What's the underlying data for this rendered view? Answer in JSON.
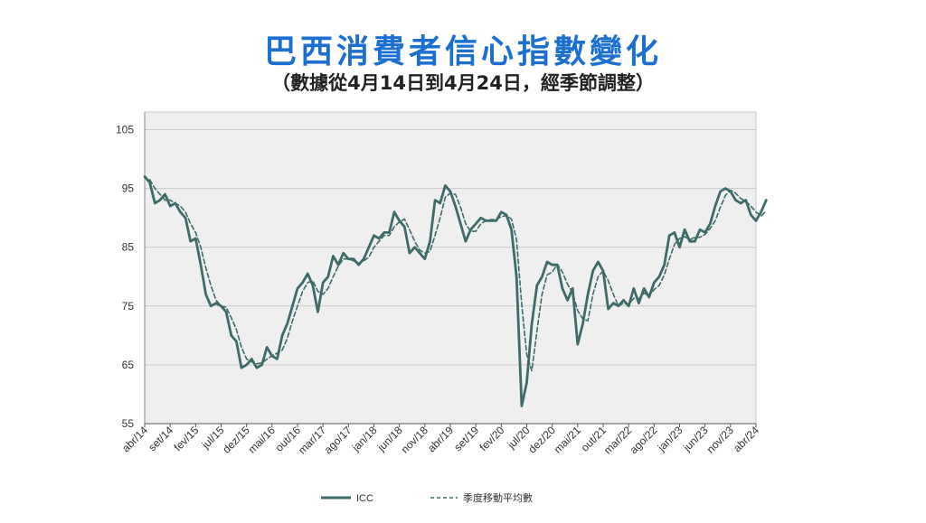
{
  "header": {
    "title": "巴西消費者信心指數變化",
    "subtitle": "（數據從4月14日到4月24日，經季節調整）"
  },
  "chart_data": {
    "type": "line",
    "title": "巴西消費者信心指數變化",
    "subtitle": "（數據從4月14日到4月24日，經季節調整）",
    "xlabel": "",
    "ylabel": "",
    "ylim": [
      55,
      108
    ],
    "yticks": [
      55,
      65,
      75,
      85,
      95,
      105
    ],
    "grid": true,
    "legend_position": "bottom",
    "x_start": "2014-04",
    "x_end": "2024-04",
    "x_tick_labels": [
      {
        "label": "abr/14",
        "month": 0
      },
      {
        "label": "set/14",
        "month": 5
      },
      {
        "label": "fev/15",
        "month": 10
      },
      {
        "label": "jul/15",
        "month": 15
      },
      {
        "label": "dez/15",
        "month": 20
      },
      {
        "label": "mai/16",
        "month": 25
      },
      {
        "label": "out/16",
        "month": 30
      },
      {
        "label": "mar/17",
        "month": 35
      },
      {
        "label": "ago/17",
        "month": 40
      },
      {
        "label": "jan/18",
        "month": 45
      },
      {
        "label": "jun/18",
        "month": 50
      },
      {
        "label": "nov/18",
        "month": 55
      },
      {
        "label": "abr/19",
        "month": 60
      },
      {
        "label": "set/19",
        "month": 65
      },
      {
        "label": "fev/20",
        "month": 70
      },
      {
        "label": "jul/20",
        "month": 75
      },
      {
        "label": "dez/20",
        "month": 80
      },
      {
        "label": "mai/21",
        "month": 85
      },
      {
        "label": "out/21",
        "month": 90
      },
      {
        "label": "mar/22",
        "month": 95
      },
      {
        "label": "ago/22",
        "month": 100
      },
      {
        "label": "jan/23",
        "month": 105
      },
      {
        "label": "jun/23",
        "month": 110
      },
      {
        "label": "nov/23",
        "month": 115
      },
      {
        "label": "abr/24",
        "month": 120
      }
    ],
    "series": [
      {
        "name": "ICC",
        "style": "solid",
        "color": "#3d6b68",
        "values": [
          97,
          96,
          92.5,
          93,
          94,
          92,
          92.5,
          91,
          90,
          86,
          86.5,
          82,
          77,
          75,
          75.5,
          75,
          74,
          70,
          69,
          64.5,
          65,
          66,
          64.5,
          65,
          68,
          66.5,
          66,
          70,
          72,
          75,
          78,
          79,
          80.5,
          78.5,
          74,
          79,
          80,
          83.5,
          82,
          84,
          83,
          83,
          82,
          83,
          85,
          87,
          86.5,
          87.5,
          87.5,
          91,
          89.5,
          88.5,
          84,
          85,
          84,
          83,
          86,
          93,
          92.5,
          95.5,
          94.5,
          92,
          89,
          86,
          88,
          89,
          90,
          89.5,
          89.5,
          89.5,
          91,
          90.5,
          88,
          80,
          58,
          62,
          72,
          78.5,
          80,
          82.5,
          82,
          82,
          78,
          76,
          78,
          68.5,
          72,
          77,
          81,
          82.5,
          81,
          74.5,
          75.5,
          75,
          76,
          75,
          78,
          75.5,
          78,
          76.5,
          79,
          80,
          82,
          87,
          87.5,
          85,
          88,
          86,
          86,
          88,
          87.5,
          89,
          92,
          94.5,
          95,
          94.5,
          93,
          92.5,
          93,
          90.5,
          89.5,
          91,
          93
        ]
      },
      {
        "name": "季度移動平均數",
        "style": "dashed",
        "color": "#3d6b68",
        "values": [
          null,
          96.5,
          95,
          94,
          93,
          93,
          92.5,
          92,
          91,
          89,
          87.5,
          85,
          81.5,
          78.5,
          76,
          75,
          74.8,
          73,
          71,
          68,
          66,
          65.5,
          65.2,
          65.3,
          66,
          66.5,
          67,
          67.5,
          69.5,
          72.5,
          75,
          77.5,
          79,
          79.3,
          77.5,
          77,
          78,
          80,
          81.8,
          83,
          83,
          82.7,
          82.3,
          82.7,
          83.3,
          85,
          86,
          87,
          87,
          88.5,
          89.3,
          89.8,
          88,
          86,
          84.5,
          84,
          84.3,
          87,
          90,
          93.5,
          94.2,
          94,
          91.8,
          89,
          87.7,
          87.7,
          89,
          89.5,
          89.7,
          89.7,
          90.2,
          90.4,
          89.8,
          86.3,
          75.3,
          66.7,
          64,
          70.8,
          77,
          80.3,
          80.8,
          82.1,
          80.8,
          78.7,
          77.3,
          74.2,
          72.8,
          72.5,
          77,
          80,
          81,
          79.3,
          77,
          75,
          75.5,
          75.3,
          76.3,
          76.2,
          77.2,
          76.7,
          77.8,
          78.5,
          80.3,
          83,
          85.5,
          86.5,
          86.8,
          86.3,
          86.7,
          86.7,
          87.2,
          88.2,
          89.5,
          91.8,
          93.8,
          94.7,
          94.2,
          93.3,
          92.8,
          92,
          91,
          90.3,
          91.2
        ]
      }
    ]
  }
}
